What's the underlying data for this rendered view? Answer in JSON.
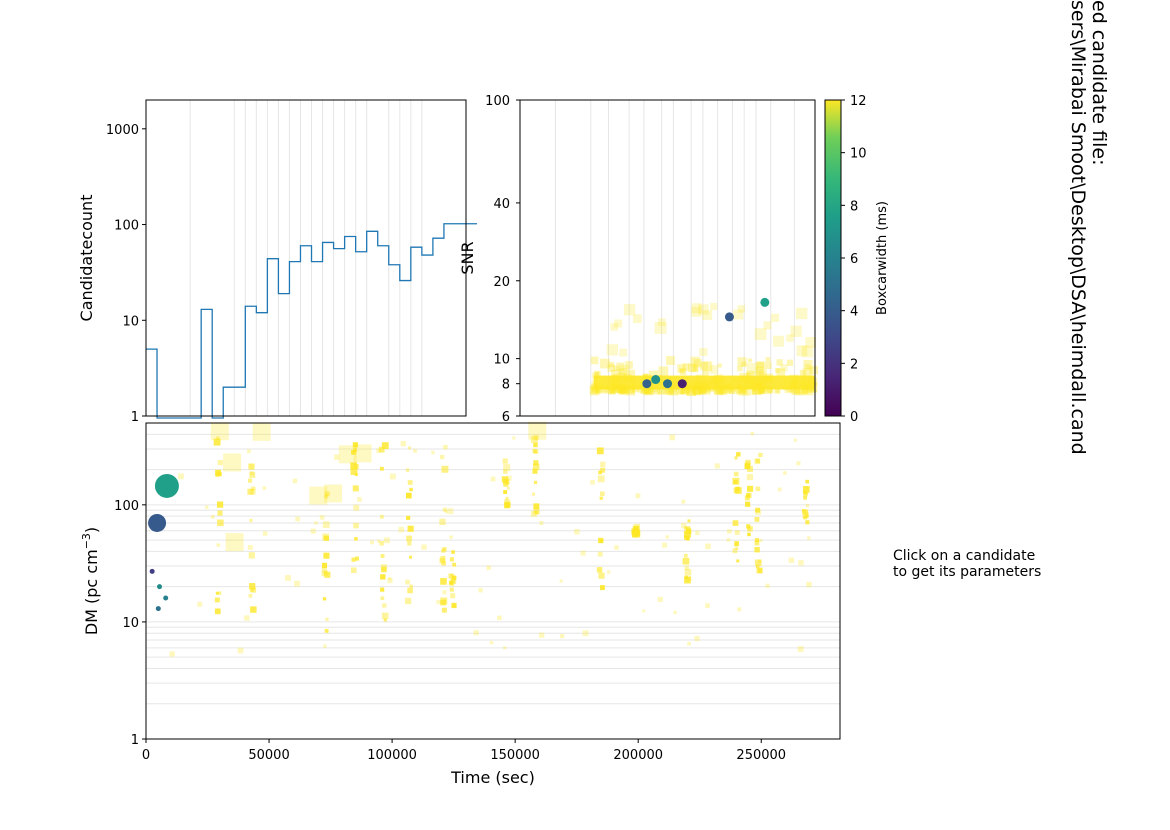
{
  "title_lines": [
    "ed candidate file:",
    "sers\\Mirabai Smoot\\Desktop\\DSA\\heimdall.cand"
  ],
  "info_lines": [
    "Click on a candidate",
    "to get its parameters"
  ],
  "colors": {
    "hist_line": "#1f77b4",
    "grid": "#e6e6e6",
    "faint_box": "#fde725"
  },
  "chart_data": [
    {
      "name": "histogram",
      "type": "line",
      "ylabel": "Candidatecount",
      "yscale": "log",
      "ylim": [
        1,
        2000
      ],
      "yticks": [
        1,
        10,
        100,
        1000
      ],
      "yticklabels": [
        "1",
        "10",
        "100",
        "1000"
      ],
      "xlim": [
        0,
        280000
      ],
      "x": [
        0,
        5000,
        10000,
        15000,
        20000,
        25000,
        30000,
        35000,
        40000,
        45000,
        50000,
        55000,
        60000,
        65000,
        70000,
        75000,
        80000,
        85000,
        90000,
        95000,
        100000,
        105000,
        110000,
        115000,
        120000,
        125000,
        130000,
        135000,
        140000,
        145000
      ],
      "steps": [
        5,
        0.5,
        0.5,
        0.5,
        0.5,
        13,
        0.5,
        2,
        2,
        14,
        12,
        44,
        19,
        41,
        60,
        41,
        65,
        56,
        75,
        52,
        85,
        60,
        38,
        26,
        58,
        48,
        72,
        102,
        102,
        102
      ],
      "gridlines_x": [
        20000,
        40000,
        45000,
        50000,
        55000,
        60000,
        65000,
        70000,
        75000,
        80000,
        85000,
        90000,
        95000,
        100000,
        110000,
        115000,
        120000,
        125000
      ]
    },
    {
      "name": "snr_scatter",
      "type": "scatter",
      "ylabel": "SNR",
      "yscale": "log",
      "ylim": [
        6,
        100
      ],
      "yticks": [
        6,
        8,
        10,
        20,
        40,
        100
      ],
      "yticklabels": [
        "6",
        "8",
        "10",
        "20",
        "40",
        "100"
      ],
      "colorbar": {
        "label": "Boxcarwidth (ms)",
        "min": 0,
        "max": 12,
        "ticks": [
          0,
          2,
          4,
          6,
          8,
          10,
          12
        ],
        "ticklabels": [
          "0",
          "2",
          "4",
          "6",
          "8",
          "10",
          "12"
        ]
      },
      "points": [
        {
          "x": 0.43,
          "snr": 8.0,
          "w": 4.2
        },
        {
          "x": 0.46,
          "snr": 8.3,
          "w": 6.8
        },
        {
          "x": 0.5,
          "snr": 8.0,
          "w": 5.0
        },
        {
          "x": 0.55,
          "snr": 8.0,
          "w": 1.2
        },
        {
          "x": 0.71,
          "snr": 14.5,
          "w": 3.8
        },
        {
          "x": 0.83,
          "snr": 16.5,
          "w": 7.6
        }
      ]
    },
    {
      "name": "dm_time",
      "type": "scatter",
      "xlabel": "Time (sec)",
      "ylabel": "DM (pc cm",
      "ylabel_sup": "−3",
      "ylabel_close": ")",
      "yscale": "log",
      "xlim": [
        0,
        282000
      ],
      "ylim": [
        1,
        500
      ],
      "xticks": [
        0,
        50000,
        100000,
        150000,
        200000,
        250000
      ],
      "xticklabels": [
        "0",
        "50000",
        "100000",
        "150000",
        "200000",
        "250000"
      ],
      "yticks": [
        1,
        10,
        100
      ],
      "yticklabels": [
        "1",
        "10",
        "100"
      ],
      "points": [
        {
          "t": 8500,
          "dm": 145,
          "w": 7.6,
          "r": 12
        },
        {
          "t": 4500,
          "dm": 70,
          "w": 3.8,
          "r": 9
        },
        {
          "t": 2500,
          "dm": 27,
          "w": 2.5,
          "r": 2.5
        },
        {
          "t": 5500,
          "dm": 20,
          "w": 6.5,
          "r": 2.5
        },
        {
          "t": 8000,
          "dm": 16,
          "w": 6.0,
          "r": 2.5
        },
        {
          "t": 5000,
          "dm": 13,
          "w": 5.0,
          "r": 2.5
        }
      ],
      "clusters": [
        {
          "t": 29500,
          "lo": 12,
          "hi": 460
        },
        {
          "t": 43000,
          "lo": 12,
          "hi": 260
        },
        {
          "t": 73000,
          "lo": 6,
          "hi": 130
        },
        {
          "t": 85000,
          "lo": 25,
          "hi": 400
        },
        {
          "t": 96500,
          "lo": 9,
          "hi": 410
        },
        {
          "t": 107000,
          "lo": 15,
          "hi": 410
        },
        {
          "t": 121000,
          "lo": 8,
          "hi": 410
        },
        {
          "t": 124500,
          "lo": 12,
          "hi": 40
        },
        {
          "t": 146500,
          "lo": 85,
          "hi": 300
        },
        {
          "t": 158000,
          "lo": 80,
          "hi": 400
        },
        {
          "t": 185000,
          "lo": 17,
          "hi": 380
        },
        {
          "t": 199000,
          "lo": 55,
          "hi": 65
        },
        {
          "t": 220000,
          "lo": 19,
          "hi": 80
        },
        {
          "t": 240000,
          "lo": 23,
          "hi": 410
        },
        {
          "t": 245000,
          "lo": 50,
          "hi": 290
        },
        {
          "t": 249000,
          "lo": 24,
          "hi": 270
        },
        {
          "t": 268000,
          "lo": 70,
          "hi": 160
        }
      ],
      "big_boxes": [
        {
          "t": 30000,
          "dm": 425
        },
        {
          "t": 47000,
          "dm": 420
        },
        {
          "t": 35000,
          "dm": 230
        },
        {
          "t": 70000,
          "dm": 120
        },
        {
          "t": 76000,
          "dm": 125
        },
        {
          "t": 82000,
          "dm": 270
        },
        {
          "t": 88000,
          "dm": 275
        },
        {
          "t": 159000,
          "dm": 430
        },
        {
          "t": 36000,
          "dm": 48
        }
      ],
      "dm_ticks_grid": [
        2,
        3,
        4,
        5,
        6,
        7,
        8,
        9,
        20,
        30,
        40,
        50,
        60,
        70,
        80,
        90,
        200,
        300,
        400
      ]
    }
  ]
}
